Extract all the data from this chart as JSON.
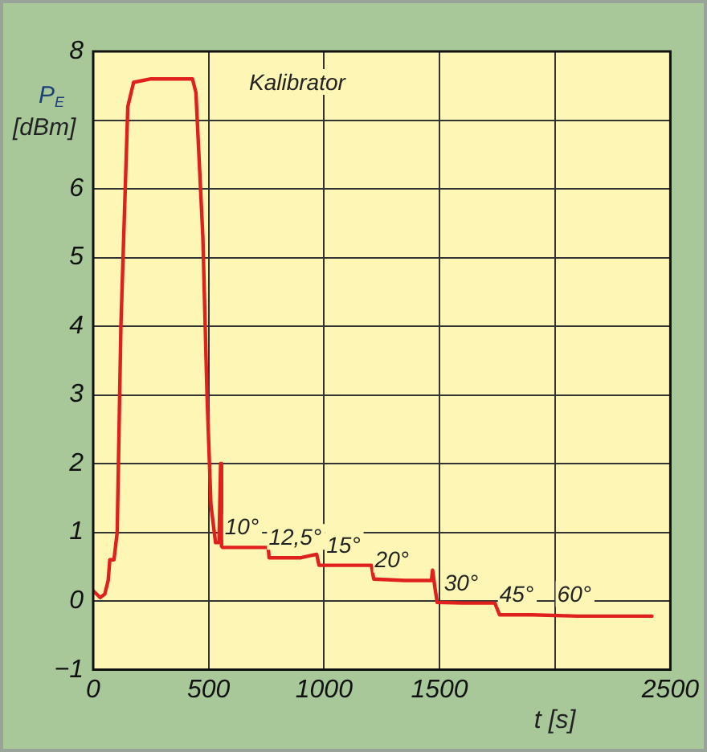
{
  "chart_data": {
    "type": "line",
    "xlabel": "t [s]",
    "ylabel": "P$_{E}$ [dBm]",
    "x": [
      0,
      30,
      50,
      65,
      72,
      90,
      104,
      120,
      150,
      175,
      250,
      350,
      430,
      445,
      465,
      475,
      480,
      493,
      510,
      530,
      545,
      552,
      556,
      560,
      650,
      758,
      762,
      900,
      968,
      978,
      1100,
      1205,
      1215,
      1350,
      1465,
      1470,
      1480,
      1490,
      1600,
      1740,
      1760,
      1900,
      2100,
      2300,
      2420
    ],
    "series": [
      {
        "color": "#e0201c",
        "values": [
          0.15,
          0.05,
          0.1,
          0.3,
          0.6,
          0.6,
          1.0,
          4.0,
          7.2,
          7.55,
          7.6,
          7.6,
          7.6,
          7.4,
          6.0,
          5.3,
          5.3,
          3.0,
          1.4,
          0.85,
          0.85,
          2.0,
          0.8,
          0.78,
          0.78,
          0.78,
          0.63,
          0.63,
          0.68,
          0.52,
          0.52,
          0.52,
          0.32,
          0.3,
          0.3,
          0.45,
          0.2,
          -0.02,
          -0.03,
          -0.03,
          -0.2,
          -0.2,
          -0.22,
          -0.22,
          -0.22
        ]
      }
    ],
    "annotations": [
      "Kalibrator",
      {
        "text": "10°",
        "x": 570,
        "y": 0.78
      },
      {
        "text": "12,5°",
        "x": 760,
        "y": 0.63
      },
      {
        "text": "15°",
        "x": 1010,
        "y": 0.52
      },
      {
        "text": "20°",
        "x": 1220,
        "y": 0.3
      },
      {
        "text": "30°",
        "x": 1520,
        "y": -0.03
      },
      {
        "text": "45°",
        "x": 1760,
        "y": -0.2
      },
      {
        "text": "60°",
        "x": 2010,
        "y": -0.2
      }
    ],
    "xlim": [
      0,
      2500
    ],
    "xticks": [
      0,
      500,
      1000,
      1500,
      {
        "value": 2000,
        "label": null
      },
      2500
    ],
    "ylim": [
      -1,
      8
    ],
    "yticks": [
      -1,
      0,
      1,
      2,
      3,
      4,
      5,
      6,
      {
        "value": 7,
        "label": null
      },
      8
    ],
    "grid": true,
    "marker": "none",
    "line_style": "solid",
    "legend": false
  }
}
